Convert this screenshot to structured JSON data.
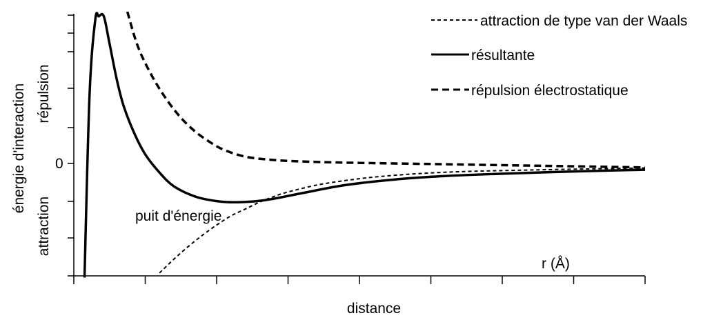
{
  "chart_data": {
    "type": "line",
    "title": "",
    "xlabel": "distance",
    "x_unit_label": "r (Å)",
    "ylabel": "énergie d'interaction",
    "y_region_labels": {
      "positive": "répulsion",
      "negative": "attraction"
    },
    "y_zero_label": "0",
    "annotation": "puit d'énergie",
    "grid": false,
    "legend_position": "top-right",
    "xlim": [
      0,
      8
    ],
    "ylim": [
      -1,
      1.3
    ],
    "series": [
      {
        "name": "attraction de type van der Waals",
        "style": "short-dash",
        "x": [
          1.2,
          1.4,
          1.6,
          1.8,
          2.0,
          2.2,
          2.4,
          2.6,
          2.8,
          3.0,
          3.4,
          3.8,
          4.2,
          4.8,
          5.5,
          6.2,
          7.0,
          8.0
        ],
        "y": [
          -0.96,
          -0.84,
          -0.73,
          -0.63,
          -0.54,
          -0.46,
          -0.4,
          -0.34,
          -0.29,
          -0.25,
          -0.19,
          -0.15,
          -0.12,
          -0.09,
          -0.07,
          -0.06,
          -0.05,
          -0.04
        ]
      },
      {
        "name": "résultante",
        "style": "solid",
        "x": [
          0.15,
          0.22,
          0.3,
          0.35,
          0.42,
          0.5,
          0.6,
          0.7,
          0.85,
          1.0,
          1.2,
          1.4,
          1.7,
          2.0,
          2.3,
          2.7,
          3.2,
          3.8,
          4.5,
          5.2,
          6.0,
          7.0,
          8.0
        ],
        "y": [
          -1.0,
          0.6,
          1.26,
          1.29,
          1.29,
          1.05,
          0.74,
          0.5,
          0.26,
          0.08,
          -0.08,
          -0.2,
          -0.29,
          -0.33,
          -0.34,
          -0.32,
          -0.26,
          -0.19,
          -0.14,
          -0.11,
          -0.09,
          -0.07,
          -0.055
        ]
      },
      {
        "name": "répulsion électrostatique",
        "style": "long-dash",
        "x": [
          0.75,
          0.9,
          1.1,
          1.3,
          1.5,
          1.7,
          1.9,
          2.1,
          2.4,
          2.8,
          3.3,
          4.0,
          5.0,
          6.0,
          7.0,
          8.0
        ],
        "y": [
          1.33,
          1.02,
          0.76,
          0.56,
          0.4,
          0.28,
          0.19,
          0.12,
          0.06,
          0.03,
          0.015,
          0.005,
          -0.005,
          -0.015,
          -0.025,
          -0.035
        ]
      }
    ]
  }
}
